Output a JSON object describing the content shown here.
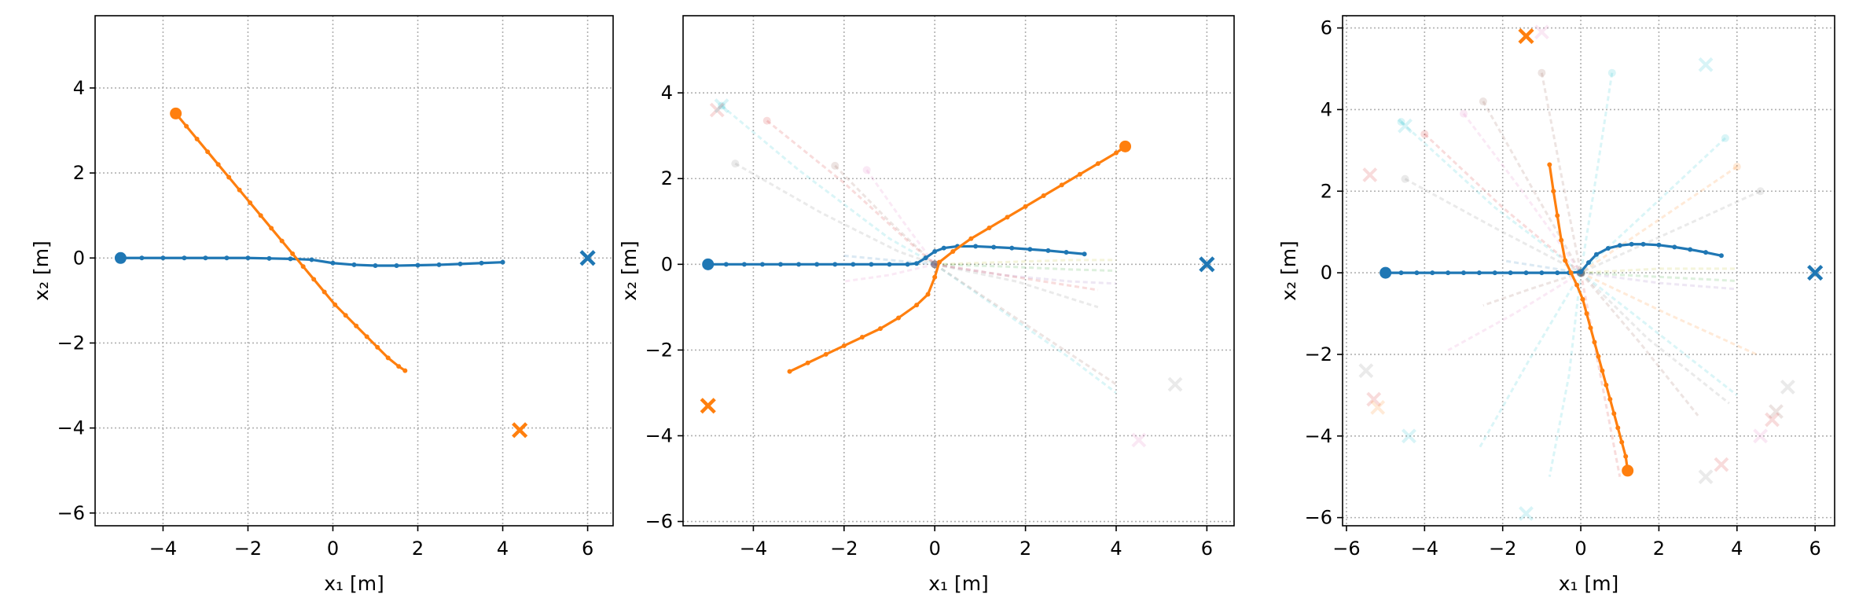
{
  "chart_data": [
    {
      "type": "line",
      "xlabel": "x₁ [m]",
      "ylabel": "x₂ [m]",
      "xlim": [
        -5.6,
        6.6
      ],
      "ylim": [
        -6.3,
        5.7
      ],
      "xticks": [
        -4,
        -2,
        0,
        2,
        4,
        6
      ],
      "yticks": [
        -6,
        -4,
        -2,
        0,
        2,
        4
      ],
      "grid": true,
      "series": [
        {
          "color": "#1f77b4",
          "start": [
            -5.0,
            0.0
          ],
          "goal": [
            6.0,
            0.0
          ],
          "x": [
            -5.0,
            -4.5,
            -4.0,
            -3.5,
            -3.0,
            -2.5,
            -2.0,
            -1.5,
            -1.0,
            -0.5,
            0.0,
            0.5,
            1.0,
            1.5,
            2.0,
            2.5,
            3.0,
            3.5,
            4.0
          ],
          "y": [
            0.0,
            0.0,
            0.0,
            0.0,
            0.0,
            0.0,
            0.0,
            -0.01,
            -0.02,
            -0.04,
            -0.12,
            -0.16,
            -0.18,
            -0.18,
            -0.17,
            -0.16,
            -0.14,
            -0.12,
            -0.1
          ]
        },
        {
          "color": "#ff7f0e",
          "start": [
            -3.7,
            3.4
          ],
          "goal": [
            4.4,
            -4.05
          ],
          "x": [
            -3.7,
            -3.45,
            -3.2,
            -2.95,
            -2.7,
            -2.45,
            -2.2,
            -1.95,
            -1.7,
            -1.45,
            -1.2,
            -0.95,
            -0.7,
            -0.45,
            -0.2,
            0.05,
            0.3,
            0.55,
            0.8,
            1.05,
            1.3,
            1.55,
            1.7
          ],
          "y": [
            3.4,
            3.1,
            2.8,
            2.5,
            2.2,
            1.9,
            1.6,
            1.3,
            1.0,
            0.7,
            0.4,
            0.1,
            -0.2,
            -0.5,
            -0.8,
            -1.1,
            -1.35,
            -1.6,
            -1.85,
            -2.1,
            -2.35,
            -2.55,
            -2.65
          ]
        }
      ]
    },
    {
      "type": "line",
      "xlabel": "x₁ [m]",
      "ylabel": "x₂ [m]",
      "xlim": [
        -5.55,
        6.6
      ],
      "ylim": [
        -6.1,
        5.8
      ],
      "xticks": [
        -4,
        -2,
        0,
        2,
        4,
        6
      ],
      "yticks": [
        -6,
        -4,
        -2,
        0,
        2,
        4
      ],
      "grid": true,
      "series": [
        {
          "color": "#1f77b4",
          "start": [
            -5.0,
            0.0
          ],
          "goal": [
            6.0,
            0.0
          ],
          "x": [
            -5.0,
            -4.6,
            -4.2,
            -3.8,
            -3.4,
            -3.0,
            -2.6,
            -2.2,
            -1.8,
            -1.4,
            -1.0,
            -0.6,
            -0.4,
            -0.2,
            0.0,
            0.2,
            0.5,
            0.9,
            1.3,
            1.7,
            2.1,
            2.5,
            2.9,
            3.3
          ],
          "y": [
            0.0,
            0.0,
            0.0,
            0.0,
            0.0,
            0.0,
            0.0,
            0.0,
            0.0,
            0.0,
            0.0,
            0.0,
            0.02,
            0.15,
            0.3,
            0.38,
            0.42,
            0.42,
            0.4,
            0.38,
            0.35,
            0.32,
            0.28,
            0.24
          ]
        },
        {
          "color": "#ff7f0e",
          "start": [
            4.2,
            2.75
          ],
          "goal": [
            -5.0,
            -3.3
          ],
          "x": [
            -3.2,
            -2.8,
            -2.4,
            -2.0,
            -1.6,
            -1.2,
            -0.8,
            -0.4,
            -0.15,
            0.0,
            0.1,
            0.4,
            0.8,
            1.2,
            1.6,
            2.0,
            2.4,
            2.8,
            3.2,
            3.6,
            4.0,
            4.2
          ],
          "y": [
            -2.5,
            -2.3,
            -2.1,
            -1.9,
            -1.7,
            -1.5,
            -1.25,
            -0.95,
            -0.7,
            -0.3,
            0.05,
            0.3,
            0.6,
            0.85,
            1.1,
            1.35,
            1.6,
            1.85,
            2.1,
            2.35,
            2.6,
            2.75
          ]
        }
      ],
      "others": [
        {
          "color": "#17becf",
          "x": [
            -4.7,
            -3.0,
            -1.0,
            0.0
          ],
          "y": [
            3.7,
            2.2,
            0.6,
            0.0
          ]
        },
        {
          "color": "#d62728",
          "x": [
            -3.7,
            -2.0,
            -0.6,
            0.0
          ],
          "y": [
            3.35,
            1.9,
            0.55,
            0.0
          ]
        },
        {
          "color": "#7f7f7f",
          "x": [
            -4.4,
            -2.5,
            -0.8,
            0.0
          ],
          "y": [
            2.35,
            1.2,
            0.3,
            0.0
          ]
        },
        {
          "color": "#e377c2",
          "x": [
            -1.5,
            -0.7,
            0.0
          ],
          "y": [
            2.2,
            1.0,
            0.0
          ]
        },
        {
          "color": "#8c564b",
          "x": [
            -2.2,
            -1.0,
            0.0
          ],
          "y": [
            2.3,
            1.0,
            0.0
          ]
        },
        {
          "color": "#bcbd22",
          "x": [
            0.0,
            1.5,
            3.0,
            4.0
          ],
          "y": [
            0.0,
            0.05,
            0.1,
            0.1
          ]
        },
        {
          "color": "#9467bd",
          "x": [
            0.0,
            1.5,
            3.0,
            4.0
          ],
          "y": [
            0.0,
            -0.25,
            -0.4,
            -0.45
          ]
        },
        {
          "color": "#2ca02c",
          "x": [
            0.0,
            1.5,
            3.0,
            4.0
          ],
          "y": [
            0.0,
            -0.05,
            -0.12,
            -0.15
          ]
        },
        {
          "color": "#17becf",
          "x": [
            0.0,
            1.5,
            3.0,
            4.0
          ],
          "y": [
            0.0,
            -1.1,
            -2.2,
            -3.0
          ]
        },
        {
          "color": "#8c564b",
          "x": [
            0.0,
            1.5,
            3.0,
            4.0
          ],
          "y": [
            0.0,
            -1.05,
            -2.1,
            -2.8
          ]
        },
        {
          "color": "#7f7f7f",
          "x": [
            0.0,
            1.8,
            3.6
          ],
          "y": [
            0.0,
            -0.4,
            -1.0
          ]
        },
        {
          "color": "#d62728",
          "x": [
            0.0,
            1.8,
            3.6
          ],
          "y": [
            0.0,
            -0.3,
            -0.6
          ]
        },
        {
          "color": "#e377c2",
          "x": [
            0.0,
            -1.0,
            -2.0
          ],
          "y": [
            0.0,
            -0.25,
            -0.4
          ]
        },
        {
          "color": "#1f77b4",
          "x": [
            0.0,
            -1.0,
            -2.0
          ],
          "y": [
            0.0,
            0.1,
            0.2
          ]
        }
      ],
      "other_goals": [
        {
          "color": "#17becf",
          "x": -4.7,
          "y": 3.7
        },
        {
          "color": "#7f7f7f",
          "x": 5.3,
          "y": -2.8
        },
        {
          "color": "#e377c2",
          "x": 4.5,
          "y": -4.1
        },
        {
          "color": "#d62728",
          "x": -4.8,
          "y": 3.6
        }
      ]
    },
    {
      "type": "line",
      "xlabel": "x₁ [m]",
      "ylabel": "x₂ [m]",
      "xlim": [
        -6.1,
        6.5
      ],
      "ylim": [
        -6.2,
        6.3
      ],
      "xticks": [
        -6,
        -4,
        -2,
        0,
        2,
        4,
        6
      ],
      "yticks": [
        -6,
        -4,
        -2,
        0,
        2,
        4,
        6
      ],
      "grid": true,
      "series": [
        {
          "color": "#1f77b4",
          "start": [
            -5.0,
            0.0
          ],
          "goal": [
            6.0,
            0.0
          ],
          "x": [
            -5.0,
            -4.6,
            -4.2,
            -3.8,
            -3.4,
            -3.0,
            -2.6,
            -2.2,
            -1.8,
            -1.4,
            -1.0,
            -0.6,
            -0.3,
            0.0,
            0.2,
            0.4,
            0.7,
            1.0,
            1.3,
            1.6,
            2.0,
            2.4,
            2.8,
            3.2,
            3.6
          ],
          "y": [
            0.0,
            0.0,
            0.0,
            0.0,
            0.0,
            0.0,
            0.0,
            0.0,
            0.0,
            0.0,
            0.0,
            0.0,
            0.0,
            0.02,
            0.25,
            0.45,
            0.6,
            0.67,
            0.7,
            0.7,
            0.68,
            0.63,
            0.57,
            0.5,
            0.42
          ]
        },
        {
          "color": "#ff7f0e",
          "start": [
            1.2,
            -4.85
          ],
          "goal": [
            -1.4,
            5.8
          ],
          "x": [
            -0.8,
            -0.7,
            -0.6,
            -0.5,
            -0.4,
            -0.25,
            -0.1,
            0.05,
            0.15,
            0.25,
            0.35,
            0.45,
            0.55,
            0.65,
            0.75,
            0.85,
            0.95,
            1.05,
            1.15,
            1.2
          ],
          "y": [
            2.65,
            2.0,
            1.4,
            0.8,
            0.3,
            0.0,
            -0.3,
            -0.65,
            -1.0,
            -1.35,
            -1.7,
            -2.05,
            -2.4,
            -2.75,
            -3.1,
            -3.45,
            -3.8,
            -4.15,
            -4.5,
            -4.85
          ]
        }
      ],
      "others": [
        {
          "color": "#17becf",
          "x": [
            -4.6,
            -2.2,
            0.0
          ],
          "y": [
            3.7,
            1.6,
            0.0
          ]
        },
        {
          "color": "#7f7f7f",
          "x": [
            -4.5,
            -2.2,
            0.0
          ],
          "y": [
            2.3,
            1.1,
            0.0
          ]
        },
        {
          "color": "#d62728",
          "x": [
            -4.0,
            -2.0,
            0.0
          ],
          "y": [
            3.4,
            1.6,
            0.0
          ]
        },
        {
          "color": "#8c564b",
          "x": [
            -2.5,
            -1.2,
            0.0
          ],
          "y": [
            4.2,
            2.0,
            0.0
          ]
        },
        {
          "color": "#e377c2",
          "x": [
            -3.0,
            -1.5,
            0.0
          ],
          "y": [
            3.9,
            2.0,
            0.0
          ]
        },
        {
          "color": "#8c564b",
          "x": [
            -1.0,
            -0.5,
            0.0
          ],
          "y": [
            4.9,
            2.4,
            0.0
          ]
        },
        {
          "color": "#17becf",
          "x": [
            0.8,
            0.4,
            0.0
          ],
          "y": [
            4.9,
            2.4,
            0.0
          ]
        },
        {
          "color": "#17becf",
          "x": [
            3.7,
            1.8,
            0.0
          ],
          "y": [
            3.3,
            1.6,
            0.0
          ]
        },
        {
          "color": "#ff7f0e",
          "x": [
            4.0,
            2.0,
            0.0
          ],
          "y": [
            2.6,
            1.3,
            0.0
          ]
        },
        {
          "color": "#7f7f7f",
          "x": [
            4.6,
            2.3,
            0.0
          ],
          "y": [
            2.0,
            1.0,
            0.0
          ]
        },
        {
          "color": "#bcbd22",
          "x": [
            0.0,
            2.0,
            4.0
          ],
          "y": [
            0.0,
            0.1,
            0.1
          ]
        },
        {
          "color": "#2ca02c",
          "x": [
            0.0,
            2.0,
            4.0
          ],
          "y": [
            0.0,
            -0.1,
            -0.2
          ]
        },
        {
          "color": "#9467bd",
          "x": [
            0.0,
            2.0,
            4.0
          ],
          "y": [
            0.0,
            -0.25,
            -0.4
          ]
        },
        {
          "color": "#ff7f0e",
          "x": [
            0.0,
            2.2,
            4.5
          ],
          "y": [
            0.0,
            -1.0,
            -2.0
          ]
        },
        {
          "color": "#17becf",
          "x": [
            0.0,
            2.0,
            4.0
          ],
          "y": [
            0.0,
            -1.5,
            -3.0
          ]
        },
        {
          "color": "#8c564b",
          "x": [
            0.0,
            1.5,
            3.0
          ],
          "y": [
            0.0,
            -1.7,
            -3.5
          ]
        },
        {
          "color": "#7f7f7f",
          "x": [
            0.0,
            1.7,
            3.8
          ],
          "y": [
            0.0,
            -1.6,
            -3.2
          ]
        },
        {
          "color": "#e377c2",
          "x": [
            0.0,
            -1.7,
            -3.4
          ],
          "y": [
            0.0,
            -1.0,
            -1.9
          ]
        },
        {
          "color": "#17becf",
          "x": [
            0.0,
            -1.3,
            -2.6
          ],
          "y": [
            0.0,
            -2.1,
            -4.3
          ]
        },
        {
          "color": "#8c564b",
          "x": [
            0.0,
            -1.3,
            -2.5
          ],
          "y": [
            0.0,
            -0.4,
            -0.8
          ]
        },
        {
          "color": "#17becf",
          "x": [
            0.0,
            -0.3,
            -0.8
          ],
          "y": [
            0.0,
            -2.5,
            -5.0
          ]
        },
        {
          "color": "#d62728",
          "x": [
            0.0,
            0.5,
            1.0
          ],
          "y": [
            0.0,
            -2.5,
            -5.0
          ]
        },
        {
          "color": "#1f77b4",
          "x": [
            0.0,
            -1.0,
            -2.0
          ],
          "y": [
            0.0,
            0.15,
            0.3
          ]
        }
      ],
      "other_goals": [
        {
          "color": "#17becf",
          "x": -4.5,
          "y": 3.6
        },
        {
          "color": "#d62728",
          "x": -5.4,
          "y": 2.4
        },
        {
          "color": "#7f7f7f",
          "x": -5.5,
          "y": -2.4
        },
        {
          "color": "#d62728",
          "x": -5.3,
          "y": -3.1
        },
        {
          "color": "#ff7f0e",
          "x": -5.2,
          "y": -3.3
        },
        {
          "color": "#17becf",
          "x": -4.4,
          "y": -4.0
        },
        {
          "color": "#17becf",
          "x": 3.2,
          "y": 5.1
        },
        {
          "color": "#e377c2",
          "x": -1.0,
          "y": 5.9
        },
        {
          "color": "#7f7f7f",
          "x": 5.3,
          "y": -2.8
        },
        {
          "color": "#8c564b",
          "x": 5.0,
          "y": -3.4
        },
        {
          "color": "#d62728",
          "x": 4.9,
          "y": -3.6
        },
        {
          "color": "#e377c2",
          "x": 4.6,
          "y": -4.0
        },
        {
          "color": "#d62728",
          "x": 3.6,
          "y": -4.7
        },
        {
          "color": "#7f7f7f",
          "x": 3.2,
          "y": -5.0
        },
        {
          "color": "#17becf",
          "x": -1.4,
          "y": -5.9
        }
      ]
    }
  ]
}
